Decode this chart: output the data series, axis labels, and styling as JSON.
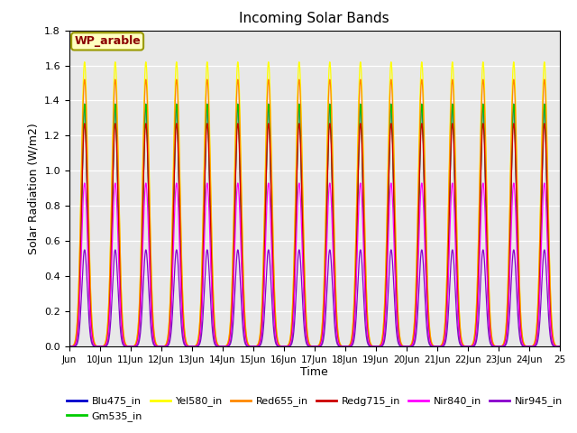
{
  "title": "Incoming Solar Bands",
  "xlabel": "Time",
  "ylabel": "Solar Radiation (W/m2)",
  "annotation": "WP_arable",
  "annotation_color": "#8B0000",
  "annotation_bg": "#FFFFC0",
  "annotation_border": "#999900",
  "ylim": [
    0,
    1.8
  ],
  "background_color": "#E8E8E8",
  "series": [
    {
      "name": "Blu475_in",
      "color": "#0000CC",
      "peak": 1.38,
      "sigma": 0.09
    },
    {
      "name": "Gm535_in",
      "color": "#00CC00",
      "peak": 1.38,
      "sigma": 0.09
    },
    {
      "name": "Yel580_in",
      "color": "#FFFF00",
      "peak": 1.62,
      "sigma": 0.11
    },
    {
      "name": "Red655_in",
      "color": "#FF8800",
      "peak": 1.52,
      "sigma": 0.11
    },
    {
      "name": "Redg715_in",
      "color": "#CC0000",
      "peak": 1.27,
      "sigma": 0.1
    },
    {
      "name": "Nir840_in",
      "color": "#FF00FF",
      "peak": 0.93,
      "sigma": 0.1
    },
    {
      "name": "Nir945_in",
      "color": "#8800CC",
      "peak": 0.55,
      "sigma": 0.09
    }
  ],
  "n_days": 16,
  "tick_labels": [
    "Jun",
    "10Jun",
    "11Jun",
    "12Jun",
    "13Jun",
    "14Jun",
    "15Jun",
    "16Jun",
    "17Jun",
    "18Jun",
    "19Jun",
    "20Jun",
    "21Jun",
    "22Jun",
    "23Jun",
    "24Jun",
    "25"
  ],
  "tick_positions": [
    0,
    1,
    2,
    3,
    4,
    5,
    6,
    7,
    8,
    9,
    10,
    11,
    12,
    13,
    14,
    15,
    16
  ]
}
